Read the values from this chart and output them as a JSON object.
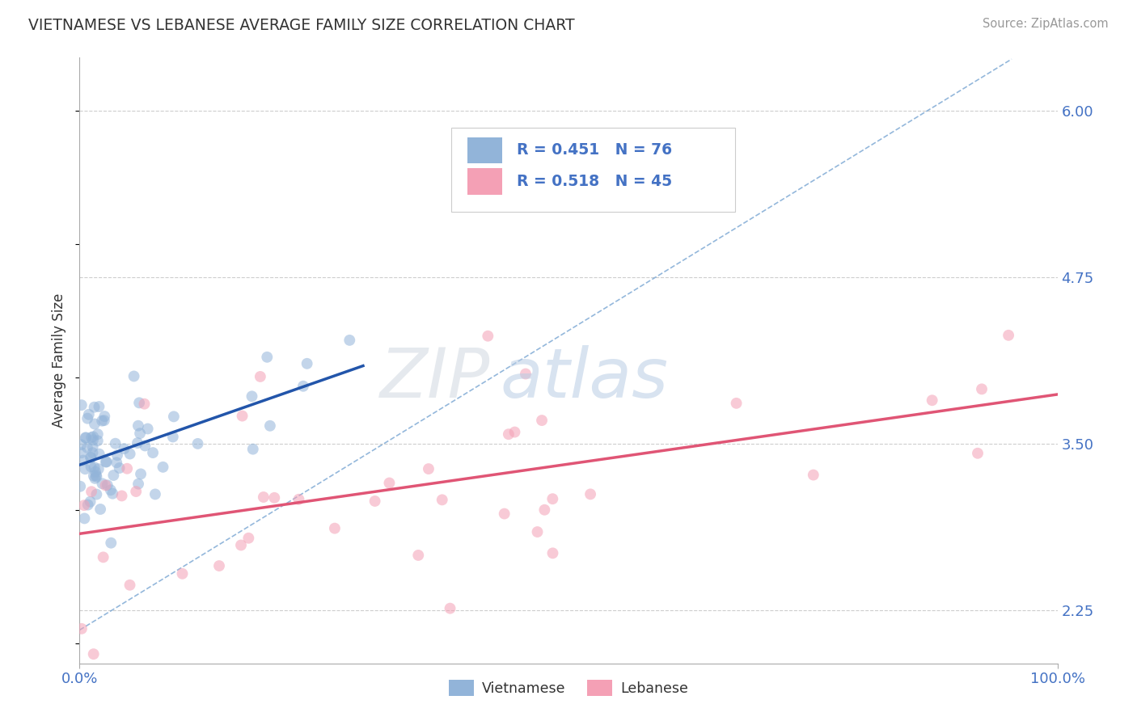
{
  "title": "VIETNAMESE VS LEBANESE AVERAGE FAMILY SIZE CORRELATION CHART",
  "source_text": "Source: ZipAtlas.com",
  "ylabel": "Average Family Size",
  "xlim": [
    0.0,
    1.0
  ],
  "ylim": [
    1.85,
    6.4
  ],
  "yticks": [
    2.25,
    3.5,
    4.75,
    6.0
  ],
  "ytick_labels": [
    "2.25",
    "3.50",
    "4.75",
    "6.00"
  ],
  "xticks": [
    0.0,
    1.0
  ],
  "xtick_labels": [
    "0.0%",
    "100.0%"
  ],
  "viet_color": "#92b4d9",
  "leb_color": "#f4a0b5",
  "viet_line_color": "#2255aa",
  "leb_line_color": "#e05575",
  "dash_line_color": "#6699cc",
  "viet_R": 0.451,
  "viet_N": 76,
  "leb_R": 0.518,
  "leb_N": 45,
  "watermark_zip": "ZIP",
  "watermark_atlas": "atlas",
  "background_color": "#ffffff",
  "grid_color": "#c8c8c8",
  "title_color": "#333333",
  "axis_label_color": "#333333",
  "tick_color": "#4472c4",
  "legend_R_color": "#4472c4",
  "legend_N_color": "#4472c4"
}
